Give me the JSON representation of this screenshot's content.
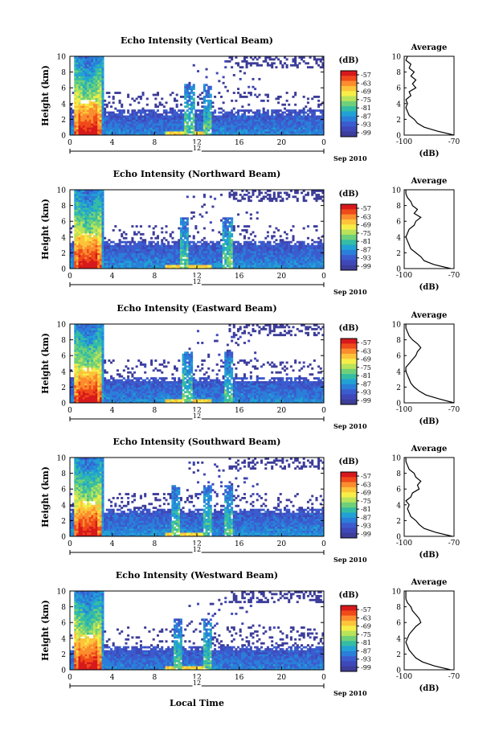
{
  "figure": {
    "date_label": "Sep 2010",
    "xlabel": "Local Time",
    "colorbar_unit": "(dB)",
    "colorbar_ticks": [
      "-57",
      "-63",
      "-69",
      "-75",
      "-81",
      "-87",
      "-93",
      "-99"
    ],
    "colorbar_colors": [
      "#d7191c",
      "#f04a1a",
      "#fb8d2e",
      "#fdc43a",
      "#f6ee47",
      "#b9e35a",
      "#6fd07a",
      "#35bda3",
      "#22a2d4",
      "#2a7fd9",
      "#3b5ccf",
      "#3f48b8",
      "#3d3d9a"
    ],
    "profile_title": "Average",
    "profile_xlabel": "(dB)"
  },
  "chart_data": [
    {
      "type": "heatmap",
      "title": "Echo Intensity (Vertical Beam)",
      "ylabel": "Height (km)",
      "xlim": [
        0,
        24
      ],
      "ylim": [
        0,
        10
      ],
      "x_ticks": [
        "0",
        "4",
        "8",
        "12",
        "16",
        "20",
        "0"
      ],
      "y_ticks": [
        "0",
        "2",
        "4",
        "6",
        "8",
        "10"
      ],
      "day_marker": "12",
      "features": {
        "storm_start": 0.5,
        "storm_end": 3.0,
        "convective_hours": [
          11.3,
          13.0
        ],
        "low_layer_top_km": 3.2
      },
      "profile": {
        "xlim": [
          -100,
          -70
        ],
        "x_ticks": [
          "-100",
          "-70"
        ],
        "height": [
          0,
          0.5,
          1,
          1.5,
          2,
          2.5,
          3,
          3.5,
          4,
          4.5,
          5,
          5.5,
          6,
          6.5,
          7,
          7.5,
          8,
          8.5,
          9,
          9.5,
          10
        ],
        "db": [
          -70,
          -80,
          -88,
          -92,
          -94,
          -97,
          -98,
          -99,
          -98,
          -99,
          -96,
          -97,
          -93,
          -95,
          -93,
          -96,
          -94,
          -97,
          -96,
          -99,
          -98
        ]
      }
    },
    {
      "type": "heatmap",
      "title": "Echo Intensity (Northward Beam)",
      "ylabel": "Height (km)",
      "xlim": [
        0,
        24
      ],
      "ylim": [
        0,
        10
      ],
      "x_ticks": [
        "0",
        "4",
        "8",
        "12",
        "16",
        "20",
        "0"
      ],
      "y_ticks": [
        "0",
        "2",
        "4",
        "6",
        "8",
        "10"
      ],
      "day_marker": "12",
      "features": {
        "storm_start": 0.5,
        "storm_end": 3.0,
        "convective_hours": [
          10.8,
          14.8
        ],
        "low_layer_top_km": 3.5
      },
      "profile": {
        "xlim": [
          -100,
          -70
        ],
        "x_ticks": [
          "-100",
          "-70"
        ],
        "height": [
          0,
          0.5,
          1,
          1.5,
          2,
          2.5,
          3,
          3.5,
          4,
          4.5,
          5,
          5.5,
          6,
          6.5,
          7,
          7.5,
          8,
          8.5,
          9,
          9.5,
          10
        ],
        "db": [
          -72,
          -82,
          -88,
          -90,
          -93,
          -96,
          -97,
          -98,
          -99,
          -98,
          -97,
          -94,
          -93,
          -90,
          -94,
          -92,
          -95,
          -96,
          -98,
          -99,
          -99
        ]
      }
    },
    {
      "type": "heatmap",
      "title": "Echo Intensity (Eastward Beam)",
      "ylabel": "Height (km)",
      "xlim": [
        0,
        24
      ],
      "ylim": [
        0,
        10
      ],
      "x_ticks": [
        "0",
        "4",
        "8",
        "12",
        "16",
        "20",
        "0"
      ],
      "y_ticks": [
        "0",
        "2",
        "4",
        "6",
        "8",
        "10"
      ],
      "day_marker": "12",
      "features": {
        "storm_start": 0.5,
        "storm_end": 3.0,
        "convective_hours": [
          11.2,
          15.0
        ],
        "low_layer_top_km": 3.3
      },
      "profile": {
        "xlim": [
          -100,
          -70
        ],
        "x_ticks": [
          "-100",
          "-70"
        ],
        "height": [
          0,
          0.5,
          1,
          1.5,
          2,
          2.5,
          3,
          3.5,
          4,
          4.5,
          5,
          5.5,
          6,
          6.5,
          7,
          7.5,
          8,
          8.5,
          9,
          9.5,
          10
        ],
        "db": [
          -70,
          -79,
          -87,
          -91,
          -94,
          -96,
          -97,
          -98,
          -99,
          -99,
          -97,
          -95,
          -93,
          -92,
          -90,
          -92,
          -95,
          -97,
          -98,
          -99,
          -99
        ]
      }
    },
    {
      "type": "heatmap",
      "title": "Echo Intensity (Southward Beam)",
      "ylabel": "Height (km)",
      "xlim": [
        0,
        24
      ],
      "ylim": [
        0,
        10
      ],
      "x_ticks": [
        "0",
        "4",
        "8",
        "12",
        "16",
        "20",
        "0"
      ],
      "y_ticks": [
        "0",
        "2",
        "4",
        "6",
        "8",
        "10"
      ],
      "day_marker": "12",
      "features": {
        "storm_start": 0.5,
        "storm_end": 3.0,
        "convective_hours": [
          10.0,
          13.0,
          15.0
        ],
        "low_layer_top_km": 3.6
      },
      "profile": {
        "xlim": [
          -100,
          -70
        ],
        "x_ticks": [
          "-100",
          "-70"
        ],
        "height": [
          0,
          0.5,
          1,
          1.5,
          2,
          2.5,
          3,
          3.5,
          4,
          4.5,
          5,
          5.5,
          6,
          6.5,
          7,
          7.5,
          8,
          8.5,
          9,
          9.5,
          10
        ],
        "db": [
          -71,
          -81,
          -88,
          -91,
          -93,
          -96,
          -97,
          -98,
          -97,
          -99,
          -96,
          -95,
          -91,
          -92,
          -90,
          -93,
          -94,
          -97,
          -98,
          -99,
          -99
        ]
      }
    },
    {
      "type": "heatmap",
      "title": "Echo Intensity (Westward Beam)",
      "ylabel": "Height (km)",
      "xlim": [
        0,
        24
      ],
      "ylim": [
        0,
        10
      ],
      "x_ticks": [
        "0",
        "4",
        "8",
        "12",
        "16",
        "20",
        "0"
      ],
      "y_ticks": [
        "0",
        "2",
        "4",
        "6",
        "8",
        "10"
      ],
      "day_marker": "12",
      "features": {
        "storm_start": 0.5,
        "storm_end": 3.0,
        "convective_hours": [
          10.2,
          13.0
        ],
        "low_layer_top_km": 3.0
      },
      "profile": {
        "xlim": [
          -100,
          -70
        ],
        "x_ticks": [
          "-100",
          "-70"
        ],
        "height": [
          0,
          0.5,
          1,
          1.5,
          2,
          2.5,
          3,
          3.5,
          4,
          4.5,
          5,
          5.5,
          6,
          6.5,
          7,
          7.5,
          8,
          8.5,
          9,
          9.5,
          10
        ],
        "db": [
          -72,
          -82,
          -89,
          -93,
          -95,
          -97,
          -98,
          -99,
          -98,
          -97,
          -95,
          -93,
          -90,
          -91,
          -93,
          -95,
          -96,
          -98,
          -99,
          -99,
          -99
        ]
      }
    }
  ]
}
